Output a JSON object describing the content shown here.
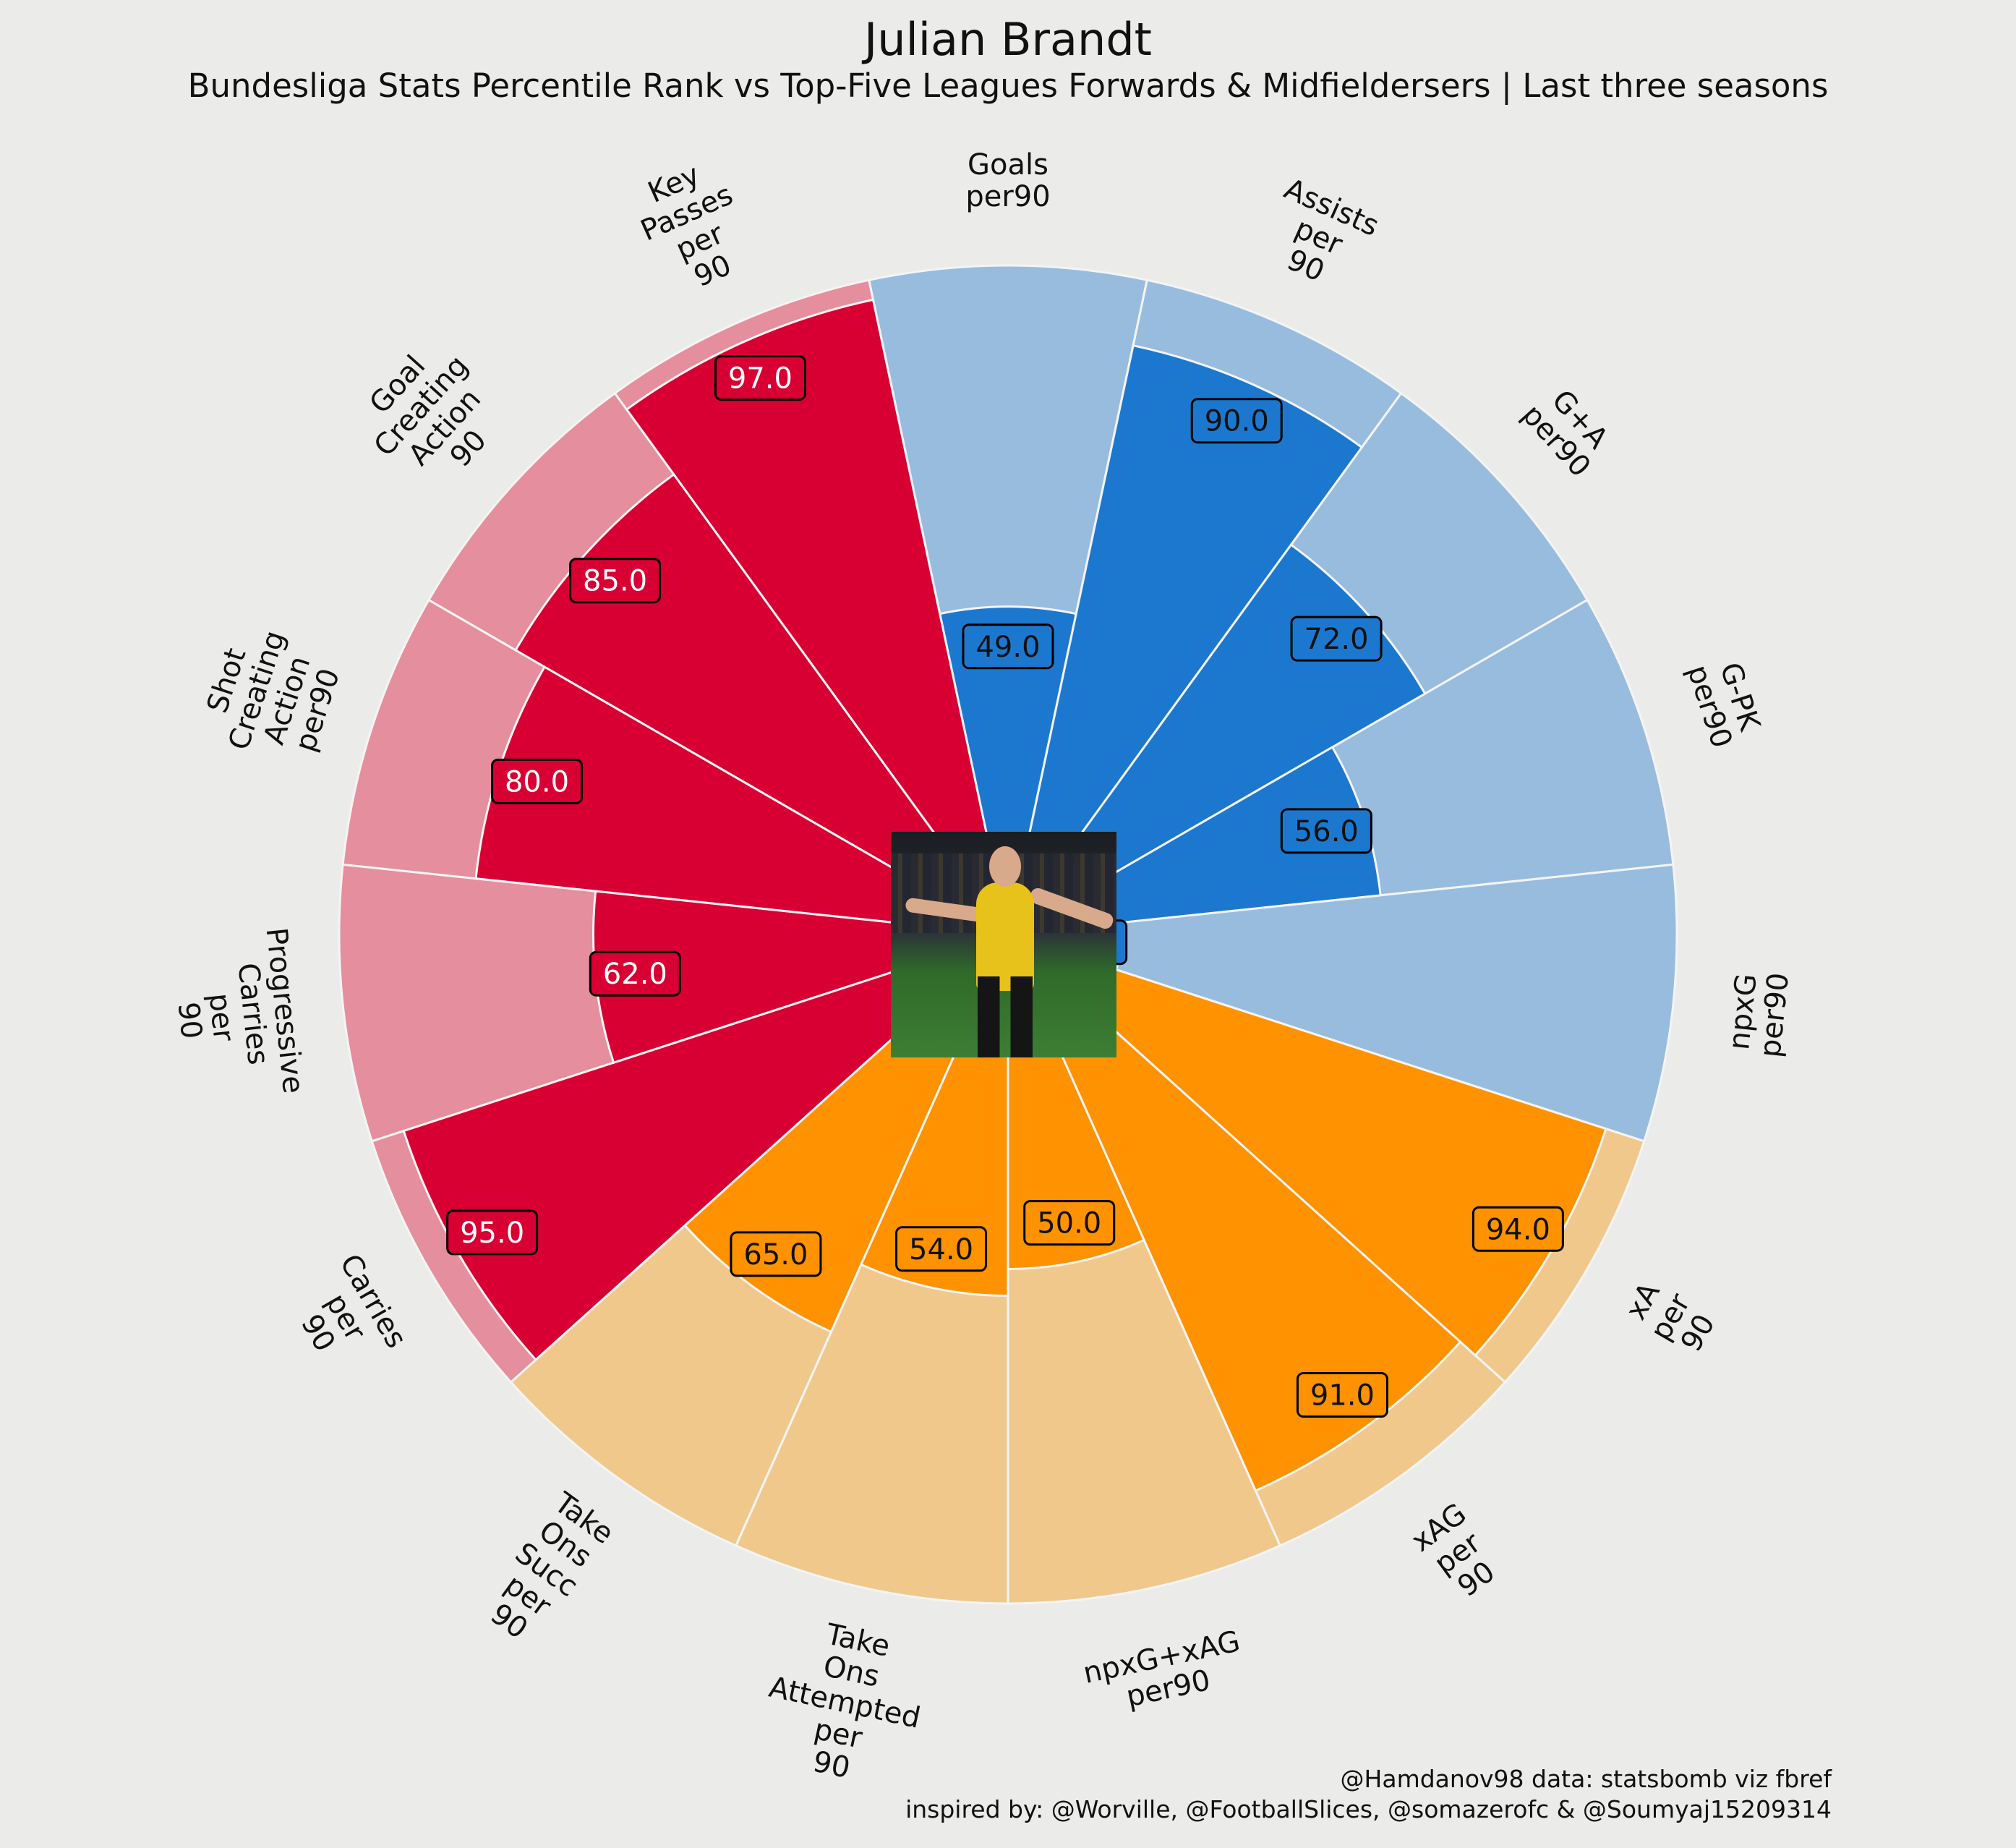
{
  "title": "Julian Brandt",
  "subtitle": "Bundesliga Stats Percentile Rank vs Top-Five Leagues Forwards & Midfieldersers | Last three seasons",
  "credits": {
    "line1": "@Hamdanov98 data: statsbomb viz fbref",
    "line2": "inspired by: @Worville, @FootballSlices, @somazerofc & @Soumyaj15209314"
  },
  "photo": {
    "icon": "player-photo"
  },
  "colors": {
    "background": "#ebebe9",
    "attack_bar": "#1c78cf",
    "attack_bg": "#98bcde",
    "possession_bar": "#fe9200",
    "possession_bg": "#f1c88c",
    "creation_bar": "#d80032",
    "creation_bg": "#e58e9d"
  },
  "chart_data": {
    "type": "polar-bar",
    "scale": [
      0,
      100
    ],
    "grid": false,
    "categories": [
      {
        "label": "Goals\nper90",
        "value": 49.0,
        "group": "attack"
      },
      {
        "label": "Assists\nper\n90",
        "value": 90.0,
        "group": "attack"
      },
      {
        "label": "G+A\nper90",
        "value": 72.0,
        "group": "attack"
      },
      {
        "label": "G-PK\nper90",
        "value": 56.0,
        "group": "attack"
      },
      {
        "label": "npxG\nper90",
        "value": 17.0,
        "group": "attack"
      },
      {
        "label": "xA\nper\n90",
        "value": 94.0,
        "group": "possession"
      },
      {
        "label": "xAG\nper\n90",
        "value": 91.0,
        "group": "possession"
      },
      {
        "label": "npxG+xAG\nper90",
        "value": 50.0,
        "group": "possession"
      },
      {
        "label": "Take\nOns\nAttempted\nper\n90",
        "value": 54.0,
        "group": "possession"
      },
      {
        "label": "Take\nOns\nSucc\nper\n90",
        "value": 65.0,
        "group": "possession"
      },
      {
        "label": "Carries\nper\n90",
        "value": 95.0,
        "group": "creation"
      },
      {
        "label": "Progressive\nCarries\nper\n90",
        "value": 62.0,
        "group": "creation"
      },
      {
        "label": "Shot\nCreating\nAction\nper90",
        "value": 80.0,
        "group": "creation"
      },
      {
        "label": "Goal\nCreating\nAction\n90",
        "value": 85.0,
        "group": "creation"
      },
      {
        "label": "Key\nPasses\nper\n90",
        "value": 97.0,
        "group": "creation"
      }
    ]
  }
}
